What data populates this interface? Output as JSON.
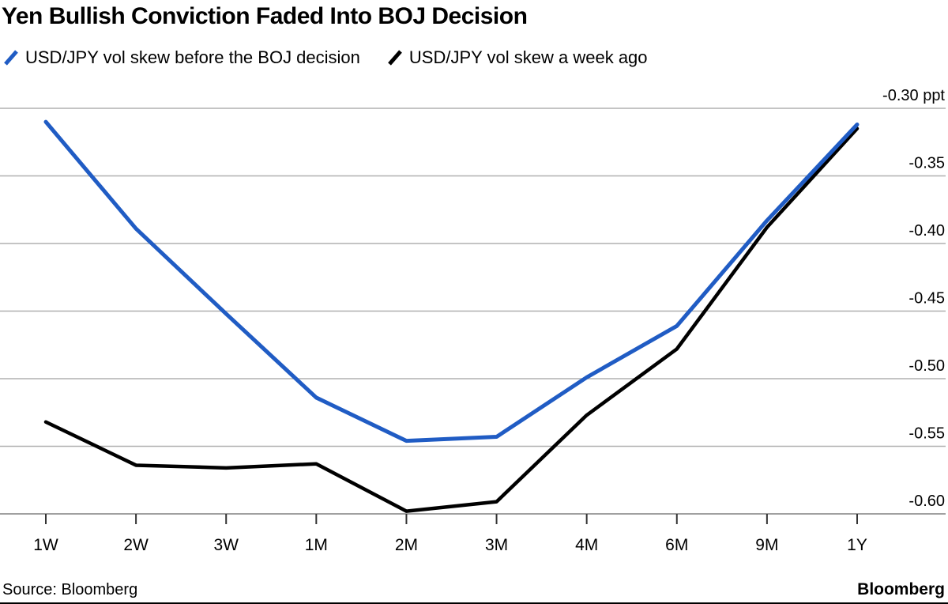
{
  "title": "Yen Bullish Conviction Faded Into BOJ Decision",
  "footer": {
    "source": "Source: Bloomberg",
    "brand": "Bloomberg"
  },
  "colors": {
    "series_blue": "#205CC4",
    "series_black": "#000000",
    "gridline": "#b0b0b0",
    "axis": "#a0a0a0",
    "tick": "#333333",
    "label": "#000000"
  },
  "icons": {
    "legend_marker": "slash-line-marker"
  },
  "chart_data": {
    "type": "line",
    "categories": [
      "1W",
      "2W",
      "3W",
      "1M",
      "2M",
      "3M",
      "4M",
      "6M",
      "9M",
      "1Y"
    ],
    "series": [
      {
        "name": "USD/JPY vol skew before the BOJ decision",
        "color": "#205CC4",
        "values": [
          -0.31,
          -0.389,
          -0.452,
          -0.514,
          -0.546,
          -0.543,
          -0.499,
          -0.461,
          -0.383,
          -0.312
        ]
      },
      {
        "name": "USD/JPY vol skew a week ago",
        "color": "#000000",
        "values": [
          -0.532,
          -0.564,
          -0.566,
          -0.563,
          -0.598,
          -0.591,
          -0.527,
          -0.478,
          -0.388,
          -0.315
        ]
      }
    ],
    "yticks": [
      -0.3,
      -0.35,
      -0.4,
      -0.45,
      -0.5,
      -0.55,
      -0.6
    ],
    "ytick_labels": [
      "-0.30 ppt",
      "-0.35",
      "-0.40",
      "-0.45",
      "-0.50",
      "-0.55",
      "-0.60"
    ],
    "ylim": [
      -0.6,
      -0.3
    ],
    "y_unit": "ppt",
    "xlabel": "",
    "ylabel": "",
    "grid": "horizontal",
    "legend_position": "top",
    "y_axis_side": "right"
  }
}
